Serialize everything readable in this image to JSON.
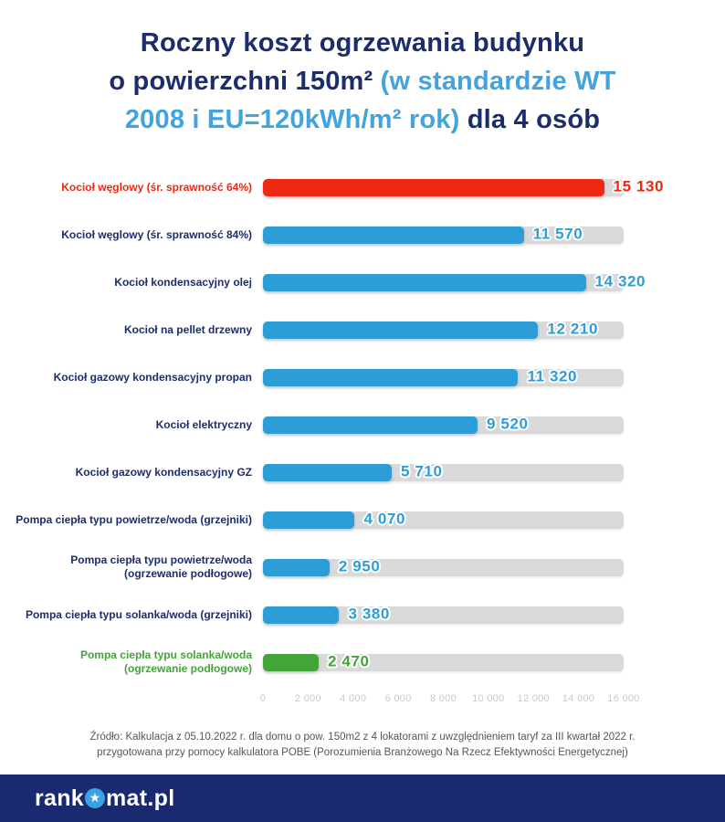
{
  "title": {
    "full_text": "Roczny koszt ogrzewania budynku o powierzchni 150m² (w standardzie WT 2008 i EU=120kWh/m² rok) dla 4 osób",
    "lines": [
      [
        {
          "text": "Roczny koszt ogrzewania budynku",
          "accent": false
        }
      ],
      [
        {
          "text": "o powierzchni 150m² ",
          "accent": false
        },
        {
          "text": "(w standardzie WT",
          "accent": true
        }
      ],
      [
        {
          "text": "2008 i EU=120kWh/m² rok)",
          "accent": true
        },
        {
          "text": " dla 4 osób",
          "accent": false
        }
      ]
    ]
  },
  "chart_data": {
    "type": "bar",
    "orientation": "horizontal",
    "title": "Roczny koszt ogrzewania budynku o powierzchni 150m² (w standardzie WT 2008 i EU=120kWh/m² rok) dla 4 osób",
    "xlabel": "",
    "ylabel": "",
    "xlim": [
      0,
      16000
    ],
    "grid": false,
    "legend": false,
    "categories": [
      "Kocioł węglowy (śr. sprawność 64%)",
      "Kocioł węglowy (śr. sprawność 84%)",
      "Kocioł kondensacyjny olej",
      "Kocioł na pellet drzewny",
      "Kocioł gazowy kondensacyjny propan",
      "Kocioł elektryczny",
      "Kocioł gazowy kondensacyjny GZ",
      "Pompa ciepła typu powietrze/woda (grzejniki)",
      "Pompa ciepła typu powietrze/woda\n(ogrzewanie podłogowe)",
      "Pompa ciepła typu solanka/woda (grzejniki)",
      "Pompa ciepła typu solanka/woda\n(ogrzewanie podłogowe)"
    ],
    "values": [
      15130,
      11570,
      14320,
      12210,
      11320,
      9520,
      5710,
      4070,
      2950,
      3380,
      2470
    ],
    "value_labels": [
      "15 130",
      "11 570",
      "14 320",
      "12 210",
      "11 320",
      "9 520",
      "5 710",
      "4 070",
      "2 950",
      "3 380",
      "2 470"
    ],
    "bar_colors": [
      "red",
      "blue",
      "blue",
      "blue",
      "blue",
      "blue",
      "blue",
      "blue",
      "blue",
      "blue",
      "green"
    ],
    "x_ticks": [
      "0",
      "2 000",
      "4 000",
      "6 000",
      "8 000",
      "10 000",
      "12 000",
      "14 000",
      "16 000"
    ]
  },
  "colors": {
    "red": "#ee2812",
    "blue": "#2d9dd8",
    "green": "#43a437",
    "navy": "#1b2d6d",
    "accent_blue": "#41a4dd",
    "track_gray": "#d9d9d9",
    "axis_gray": "#c9c9cc",
    "footer_gray": "#55565a",
    "brandbar_navy": "#1a2a70",
    "star_circle_blue": "#3aa3e3"
  },
  "footer": {
    "source_text": "Źródło: Kalkulacja z 05.10.2022 r. dla domu o pow. 150m2 z 4 lokatorami z uwzględnieniem taryf za III kwartał 2022 r.\nprzygotowana przy pomocy kalkulatora POBE (Porozumienia Branżowego Na Rzecz Efektywności Energetycznej)"
  },
  "brandbar": {
    "logo_prefix": "rank",
    "logo_suffix": "mat.pl",
    "star_icon": "★"
  }
}
